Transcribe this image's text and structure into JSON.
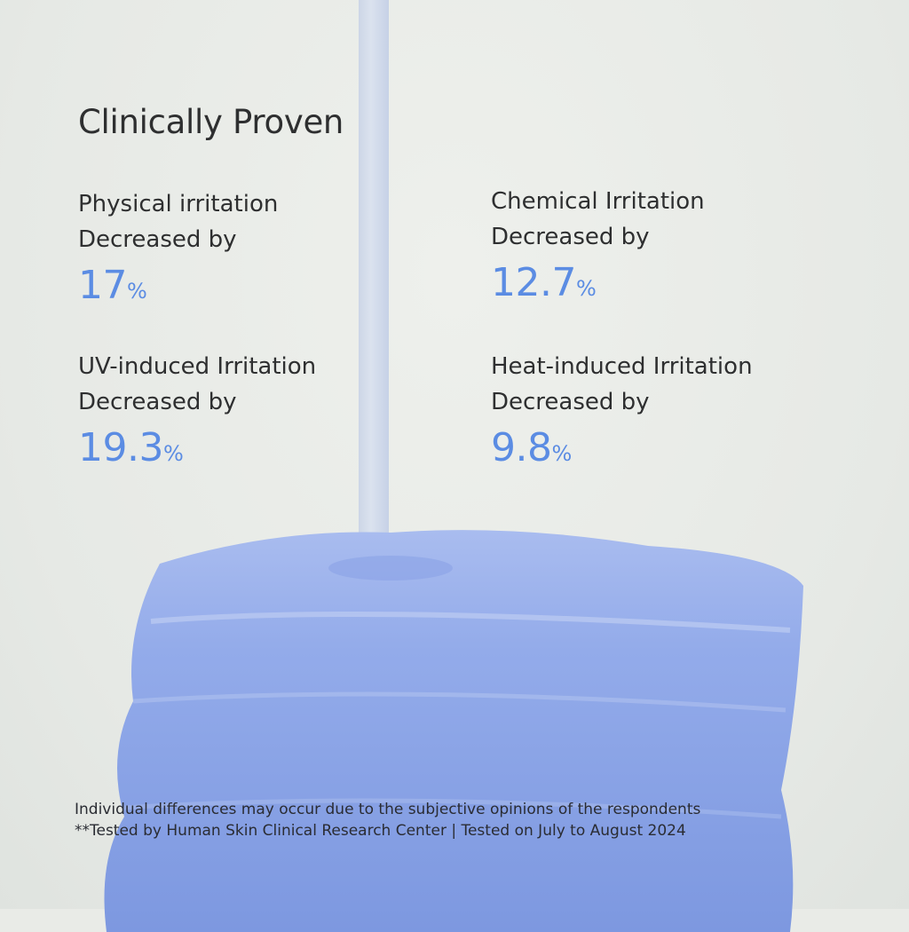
{
  "title": "Clinically Proven",
  "stats": [
    {
      "line1": "Physical irritation",
      "line2": "Decreased by",
      "value": "17",
      "unit": "%"
    },
    {
      "line1": "Chemical Irritation",
      "line2": "Decreased by",
      "value": "12.7",
      "unit": "%"
    },
    {
      "line1": "UV-induced Irritation",
      "line2": "Decreased by",
      "value": "19.3",
      "unit": "%"
    },
    {
      "line1": "Heat-induced Irritation",
      "line2": "Decreased by",
      "value": "9.8",
      "unit": "%"
    }
  ],
  "footnotes": [
    "Individual differences may occur due to the subjective opinions of the respondents",
    "**Tested by Human Skin Clinical Research Center | Tested on July to August 2024"
  ],
  "colors": {
    "accent": "#5b8ce3",
    "gel": "#8ea6e6",
    "background": "#e9ebe7"
  }
}
